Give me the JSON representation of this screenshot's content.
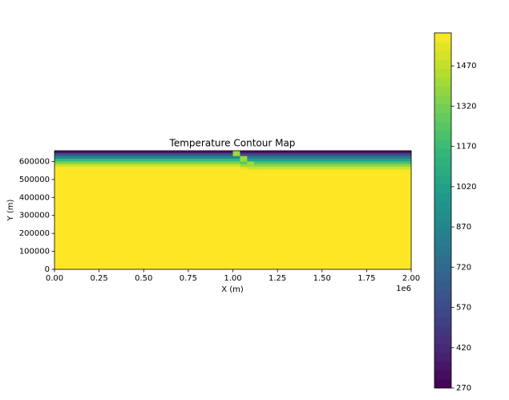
{
  "chart_data": {
    "type": "contour",
    "title": "Temperature Contour Map",
    "x_label": "X (m)",
    "y_label": "Y (m)",
    "x_offset_label": "1e6",
    "x": [
      0,
      1000000,
      1040000,
      1080000,
      1120000,
      2000000
    ],
    "y": [
      660000,
      645000,
      630000,
      615000,
      600000,
      585000,
      570000,
      555000,
      540000,
      0
    ],
    "z": [
      [
        350,
        1400,
        330,
        330,
        330
      ],
      [
        650,
        1400,
        600,
        600,
        600
      ],
      [
        900,
        900,
        1400,
        820,
        820
      ],
      [
        1150,
        1150,
        1400,
        1030,
        1030
      ],
      [
        1350,
        1350,
        1250,
        1400,
        1220
      ],
      [
        1500,
        1500,
        1400,
        1400,
        1380
      ],
      [
        1593,
        1593,
        1550,
        1500,
        1500
      ],
      [
        1593,
        1593,
        1593,
        1593,
        1593
      ],
      [
        1593,
        1593,
        1593,
        1593,
        1593
      ]
    ],
    "colormap": "viridis",
    "xlim": [
      0,
      2000000
    ],
    "xticks": [
      {
        "value": 0,
        "label": "0.00"
      },
      {
        "value": 250000,
        "label": "0.25"
      },
      {
        "value": 500000,
        "label": "0.50"
      },
      {
        "value": 750000,
        "label": "0.75"
      },
      {
        "value": 1000000,
        "label": "1.00"
      },
      {
        "value": 1250000,
        "label": "1.25"
      },
      {
        "value": 1500000,
        "label": "1.50"
      },
      {
        "value": 1750000,
        "label": "1.75"
      },
      {
        "value": 2000000,
        "label": "2.00"
      }
    ],
    "ylim": [
      0,
      660000
    ],
    "yticks": [
      0,
      100000,
      200000,
      300000,
      400000,
      500000,
      600000
    ],
    "clim": [
      270,
      1593
    ],
    "cticks": [
      270,
      420,
      570,
      720,
      870,
      1020,
      1170,
      1320,
      1470
    ]
  }
}
